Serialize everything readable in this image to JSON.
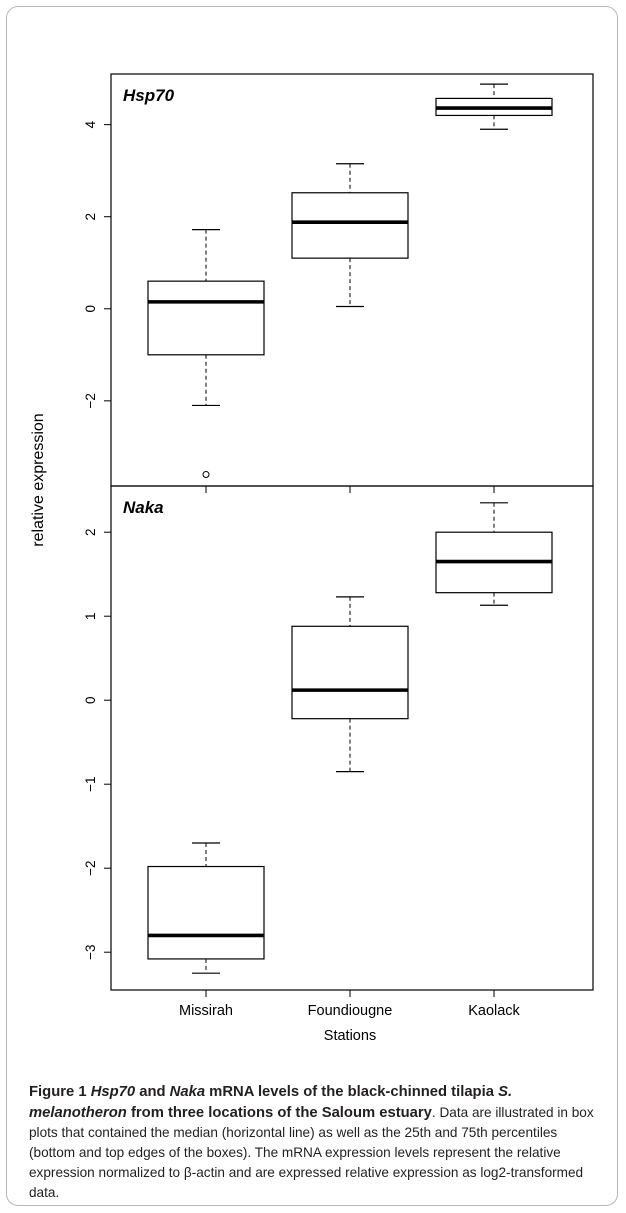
{
  "chart_data": [
    {
      "type": "box",
      "label": "Hsp70",
      "categories": [
        "Missirah",
        "Foundiougne",
        "Kaolack"
      ],
      "boxes": [
        {
          "category": "Missirah",
          "whisker_low": -2.1,
          "q1": -1.0,
          "median": 0.15,
          "q3": 0.6,
          "whisker_high": 1.72,
          "outliers": [
            -3.6
          ]
        },
        {
          "category": "Foundiougne",
          "whisker_low": 0.05,
          "q1": 1.1,
          "median": 1.88,
          "q3": 2.52,
          "whisker_high": 3.15,
          "outliers": []
        },
        {
          "category": "Kaolack",
          "whisker_low": 3.9,
          "q1": 4.2,
          "median": 4.36,
          "q3": 4.57,
          "whisker_high": 4.88,
          "outliers": []
        }
      ],
      "ylim": [
        -3.85,
        5.1
      ],
      "yticks": [
        -2,
        0,
        2,
        4
      ],
      "ytick_labels": [
        "−2",
        "0",
        "2",
        "4"
      ]
    },
    {
      "type": "box",
      "label": "Naka",
      "categories": [
        "Missirah",
        "Foundiougne",
        "Kaolack"
      ],
      "boxes": [
        {
          "category": "Missirah",
          "whisker_low": -3.25,
          "q1": -3.08,
          "median": -2.8,
          "q3": -1.98,
          "whisker_high": -1.7,
          "outliers": []
        },
        {
          "category": "Foundiougne",
          "whisker_low": -0.85,
          "q1": -0.22,
          "median": 0.12,
          "q3": 0.88,
          "whisker_high": 1.23,
          "outliers": []
        },
        {
          "category": "Kaolack",
          "whisker_low": 1.13,
          "q1": 1.28,
          "median": 1.65,
          "q3": 2.0,
          "whisker_high": 2.35,
          "outliers": []
        }
      ],
      "ylim": [
        -3.45,
        2.55
      ],
      "yticks": [
        -3,
        -2,
        -1,
        0,
        1,
        2
      ],
      "ytick_labels": [
        "−3",
        "−2",
        "−1",
        "0",
        "1",
        "2"
      ]
    }
  ],
  "axes": {
    "ylabel": "relative expression",
    "xlabel": "Stations"
  },
  "caption": {
    "figure_label": "Figure 1",
    "gene1": "Hsp70",
    "and_word": "and",
    "gene2": "Naka",
    "head_text": "mRNA levels of the black-chinned tilapia",
    "species": "S. melanotheron",
    "head_tail": "from three locations of the Saloum estuary",
    "body": "Data are illustrated in box plots that contained the median (horizontal line) as well as the 25th and 75th percentiles (bottom and top edges of the boxes). The mRNA expression levels represent the relative expression normalized to β-actin and are expressed relative expression as log2-transformed data."
  }
}
